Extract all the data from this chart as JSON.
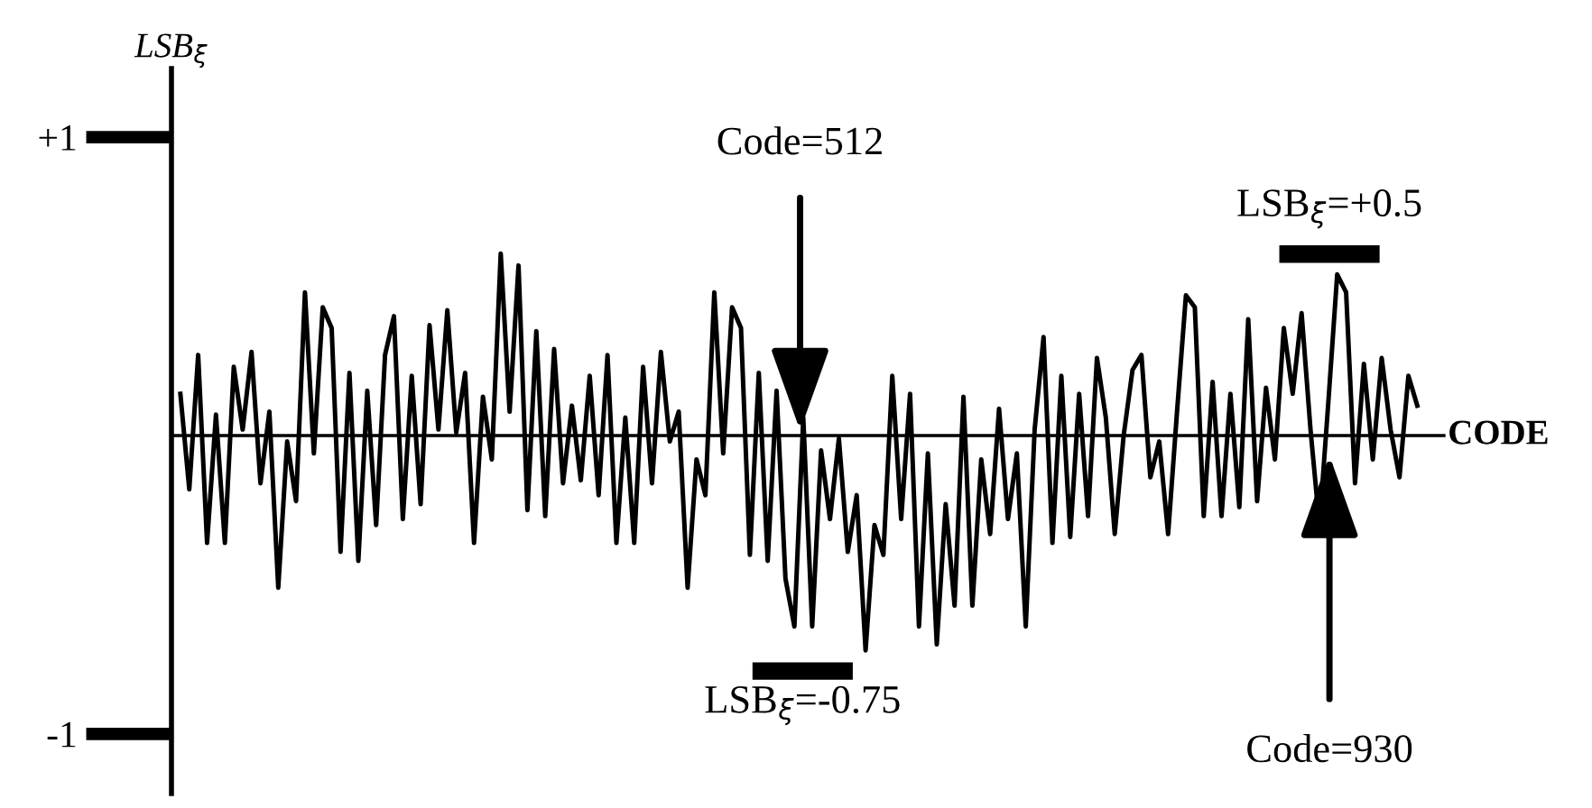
{
  "chart_data": {
    "type": "line",
    "ylabel": "LSB$_{ξ}$",
    "xlabel": "CODE",
    "categories": [
      null,
      null,
      null,
      null,
      null,
      null,
      null,
      null,
      null,
      null,
      null,
      null,
      null,
      null,
      null,
      null,
      null,
      null,
      null,
      null,
      null,
      null,
      null,
      null,
      null,
      null,
      null,
      null,
      null,
      null,
      null,
      null,
      null,
      null,
      null,
      null,
      null,
      null,
      null,
      null,
      null,
      null,
      null,
      null,
      null,
      null,
      null,
      null,
      null,
      null,
      null,
      null,
      null,
      null,
      null,
      null,
      null,
      null,
      null,
      null,
      null,
      null,
      null,
      null,
      null,
      null,
      null,
      null,
      null,
      null,
      null,
      null,
      null,
      null,
      null,
      null,
      null,
      null,
      null,
      null,
      null,
      null,
      null,
      null,
      null,
      null,
      null,
      null,
      null,
      null,
      null,
      null,
      null,
      null,
      null,
      null,
      null,
      null,
      null,
      null,
      null,
      null,
      null,
      null,
      null,
      null,
      null,
      null,
      null,
      null,
      null,
      null,
      null,
      null,
      null,
      null,
      null,
      null,
      null,
      null,
      null,
      null,
      null,
      null,
      null,
      null,
      null,
      null,
      null,
      null,
      null,
      null,
      null,
      null,
      null,
      null,
      null,
      null,
      null,
      null
    ],
    "ylim": [
      -1.2,
      1.23
    ],
    "yticks": [
      {
        "value": 1,
        "label": "+1"
      },
      {
        "value": -1,
        "label": "-1"
      }
    ],
    "tick_labels": "y",
    "grid": false,
    "annotations": [
      "Code=512",
      "Code=930",
      "LSB$_{ξ}$=-0.75",
      "LSB$_{ξ}$=+0.5"
    ],
    "series": [
      {
        "color": "#000000",
        "values": [
          0.14,
          -0.18,
          0.27,
          -0.36,
          0.07,
          -0.36,
          0.23,
          0.02,
          0.28,
          -0.16,
          0.08,
          -0.51,
          -0.02,
          -0.22,
          0.48,
          -0.06,
          0.43,
          0.36,
          -0.39,
          0.21,
          -0.42,
          0.15,
          -0.3,
          0.27,
          0.4,
          -0.28,
          0.2,
          -0.23,
          0.37,
          0.02,
          0.42,
          0.01,
          0.21,
          -0.36,
          0.13,
          -0.08,
          0.61,
          0.08,
          0.57,
          -0.25,
          0.35,
          -0.27,
          0.29,
          -0.16,
          0.1,
          -0.15,
          0.2,
          -0.2,
          0.27,
          -0.36,
          0.06,
          -0.36,
          0.23,
          -0.16,
          0.28,
          -0.02,
          0.08,
          -0.51,
          -0.08,
          -0.2,
          0.48,
          -0.06,
          0.43,
          0.36,
          -0.4,
          0.21,
          -0.42,
          0.15,
          -0.48,
          -0.64,
          0.06,
          -0.64,
          -0.05,
          -0.28,
          -0.01,
          -0.39,
          -0.2,
          -0.72,
          -0.3,
          -0.4,
          0.2,
          -0.28,
          0.14,
          -0.64,
          -0.06,
          -0.7,
          -0.23,
          -0.57,
          0.13,
          -0.57,
          -0.08,
          -0.33,
          0.09,
          -0.28,
          -0.06,
          -0.64,
          0.02,
          0.33,
          -0.36,
          0.2,
          -0.34,
          0.14,
          -0.27,
          0.26,
          0.06,
          -0.33,
          0.0,
          0.22,
          0.27,
          -0.14,
          -0.02,
          -0.33,
          0.08,
          0.47,
          0.43,
          -0.27,
          0.18,
          -0.27,
          0.14,
          -0.24,
          0.39,
          -0.22,
          0.16,
          -0.08,
          0.36,
          0.14,
          0.41,
          0.02,
          -0.3,
          0.11,
          0.54,
          0.48,
          -0.16,
          0.24,
          -0.08,
          0.26,
          0.02,
          -0.14,
          0.2,
          0.1
        ]
      }
    ]
  }
}
